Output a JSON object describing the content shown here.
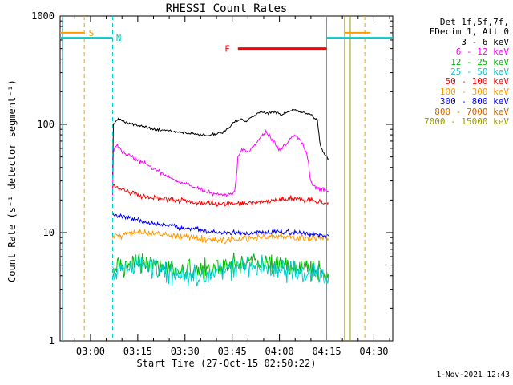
{
  "title": "RHESSI Count Rates",
  "xlabel": "Start Time (27-Oct-15 02:50:22)",
  "ylabel": "Count Rate (s⁻¹ detector segment⁻¹)",
  "timestamp": "1-Nov-2021 12:43",
  "legend": {
    "detectors": "Det 1f,5f,7f,",
    "decim": "FDecim 1, Att 0",
    "position": "right"
  },
  "chart_data": {
    "type": "line",
    "title": "RHESSI Count Rates",
    "xlabel": "Start Time (27-Oct-15 02:50:22)",
    "ylabel": "Count Rate (s⁻¹ detector segment⁻¹)",
    "x_unit": "decimal hours on 27-Oct-15",
    "xlim": [
      2.839,
      4.6
    ],
    "ylim": [
      1,
      1000
    ],
    "yscale": "log",
    "grid": false,
    "x_ticks": [
      {
        "value": 3.0,
        "label": "03:00"
      },
      {
        "value": 3.25,
        "label": "03:15"
      },
      {
        "value": 3.5,
        "label": "03:30"
      },
      {
        "value": 3.75,
        "label": "03:45"
      },
      {
        "value": 4.0,
        "label": "04:00"
      },
      {
        "value": 4.25,
        "label": "04:15"
      },
      {
        "value": 4.5,
        "label": "04:30"
      }
    ],
    "y_ticks": [
      {
        "value": 1,
        "label": "1"
      },
      {
        "value": 10,
        "label": "10"
      },
      {
        "value": 100,
        "label": "100"
      },
      {
        "value": 1000,
        "label": "1000"
      }
    ],
    "series": [
      {
        "name": "3 - 6 keV",
        "color": "#000000",
        "noise_dex": 0.015,
        "points": [
          [
            3.117,
            32
          ],
          [
            3.121,
            100
          ],
          [
            3.14,
            112
          ],
          [
            3.17,
            108
          ],
          [
            3.25,
            97
          ],
          [
            3.35,
            90
          ],
          [
            3.45,
            86
          ],
          [
            3.55,
            81
          ],
          [
            3.62,
            79
          ],
          [
            3.7,
            84
          ],
          [
            3.74,
            96
          ],
          [
            3.77,
            108
          ],
          [
            3.8,
            112
          ],
          [
            3.82,
            106
          ],
          [
            3.86,
            118
          ],
          [
            3.9,
            132
          ],
          [
            3.94,
            126
          ],
          [
            3.98,
            130
          ],
          [
            4.01,
            122
          ],
          [
            4.04,
            128
          ],
          [
            4.07,
            137
          ],
          [
            4.1,
            133
          ],
          [
            4.13,
            128
          ],
          [
            4.17,
            122
          ],
          [
            4.2,
            110
          ],
          [
            4.215,
            65
          ],
          [
            4.23,
            55
          ],
          [
            4.26,
            48
          ]
        ]
      },
      {
        "name": "6 - 12 keV",
        "color": "#ff00ff",
        "noise_dex": 0.025,
        "points": [
          [
            3.117,
            22
          ],
          [
            3.121,
            55
          ],
          [
            3.135,
            66
          ],
          [
            3.16,
            58
          ],
          [
            3.2,
            52
          ],
          [
            3.28,
            44
          ],
          [
            3.36,
            37
          ],
          [
            3.45,
            30
          ],
          [
            3.55,
            26
          ],
          [
            3.65,
            23
          ],
          [
            3.72,
            22
          ],
          [
            3.765,
            24
          ],
          [
            3.78,
            48
          ],
          [
            3.8,
            60
          ],
          [
            3.83,
            55
          ],
          [
            3.86,
            62
          ],
          [
            3.9,
            76
          ],
          [
            3.93,
            84
          ],
          [
            3.96,
            74
          ],
          [
            4.0,
            58
          ],
          [
            4.03,
            64
          ],
          [
            4.06,
            76
          ],
          [
            4.09,
            79
          ],
          [
            4.12,
            68
          ],
          [
            4.15,
            50
          ],
          [
            4.165,
            30
          ],
          [
            4.19,
            26
          ],
          [
            4.26,
            24
          ]
        ]
      },
      {
        "name": "12 - 25 keV",
        "color": "#00bb00",
        "noise_dex": 0.12,
        "points": [
          [
            3.117,
            4.4
          ],
          [
            3.22,
            5.4
          ],
          [
            3.35,
            5.0
          ],
          [
            3.5,
            4.3
          ],
          [
            3.62,
            4.6
          ],
          [
            3.75,
            5.0
          ],
          [
            3.88,
            5.4
          ],
          [
            4.0,
            5.0
          ],
          [
            4.12,
            4.6
          ],
          [
            4.26,
            4.3
          ]
        ]
      },
      {
        "name": "25 - 50 keV",
        "color": "#00cccc",
        "noise_dex": 0.12,
        "points": [
          [
            3.117,
            4.0
          ],
          [
            3.22,
            4.9
          ],
          [
            3.35,
            4.6
          ],
          [
            3.5,
            3.9
          ],
          [
            3.62,
            4.2
          ],
          [
            3.75,
            4.6
          ],
          [
            3.88,
            5.0
          ],
          [
            4.0,
            4.6
          ],
          [
            4.12,
            4.2
          ],
          [
            4.26,
            3.9
          ]
        ]
      },
      {
        "name": "50 - 100 keV",
        "color": "#ff0000",
        "noise_dex": 0.03,
        "points": [
          [
            3.117,
            27
          ],
          [
            3.16,
            25
          ],
          [
            3.25,
            22
          ],
          [
            3.35,
            21
          ],
          [
            3.5,
            19.5
          ],
          [
            3.65,
            18.5
          ],
          [
            3.8,
            18.5
          ],
          [
            3.95,
            19.5
          ],
          [
            4.05,
            21
          ],
          [
            4.15,
            20
          ],
          [
            4.26,
            18.5
          ]
        ]
      },
      {
        "name": "100 - 300 keV",
        "color": "#ff9900",
        "noise_dex": 0.04,
        "points": [
          [
            3.117,
            9.2
          ],
          [
            3.25,
            10
          ],
          [
            3.4,
            9.5
          ],
          [
            3.55,
            8.8
          ],
          [
            3.7,
            8.5
          ],
          [
            3.85,
            9
          ],
          [
            4.0,
            9.3
          ],
          [
            4.15,
            9
          ],
          [
            4.26,
            8.7
          ]
        ]
      },
      {
        "name": "300 - 800 keV",
        "color": "#0000ff",
        "noise_dex": 0.03,
        "points": [
          [
            3.117,
            14.5
          ],
          [
            3.2,
            13.5
          ],
          [
            3.35,
            12
          ],
          [
            3.5,
            11
          ],
          [
            3.65,
            10.2
          ],
          [
            3.8,
            9.8
          ],
          [
            3.95,
            10.2
          ],
          [
            4.1,
            10
          ],
          [
            4.26,
            9.3
          ]
        ]
      },
      {
        "name": "800 - 7000 keV",
        "color": "#cc6600",
        "noise_dex": 0,
        "points": []
      },
      {
        "name": "7000 - 15000 keV",
        "color": "#999900",
        "noise_dex": 0,
        "points": []
      }
    ],
    "annotations": {
      "vlines": [
        {
          "x": 2.851,
          "color": "#00cccc",
          "style": "solid"
        },
        {
          "x": 2.967,
          "color": "#ff9900",
          "style": "dash",
          "flag": "S"
        },
        {
          "x": 3.117,
          "color": "#00cccc",
          "style": "dash",
          "flag": "N"
        },
        {
          "x": 4.25,
          "color": "#00cccc",
          "style": "solid"
        },
        {
          "x": 4.345,
          "color": "#999900",
          "style": "solid"
        },
        {
          "x": 4.375,
          "color": "#999900",
          "style": "solid"
        },
        {
          "x": 4.452,
          "color": "#ff9900",
          "style": "dash"
        }
      ],
      "hlines": [
        {
          "x1": 2.839,
          "x2": 2.967,
          "y": 700,
          "color": "#ff9900",
          "width": 2,
          "label": "S",
          "label_x": 2.99
        },
        {
          "x1": 2.839,
          "x2": 3.117,
          "y": 630,
          "color": "#00cccc",
          "width": 2,
          "label": "N",
          "label_x": 3.135
        },
        {
          "x1": 3.78,
          "x2": 4.25,
          "y": 500,
          "color": "#ff0000",
          "width": 3,
          "label": "F",
          "label_x": 3.71
        },
        {
          "x1": 4.25,
          "x2": 4.6,
          "y": 630,
          "color": "#00cccc",
          "width": 2
        },
        {
          "x1": 4.345,
          "x2": 4.482,
          "y": 700,
          "color": "#ff9900",
          "width": 2
        }
      ]
    }
  }
}
